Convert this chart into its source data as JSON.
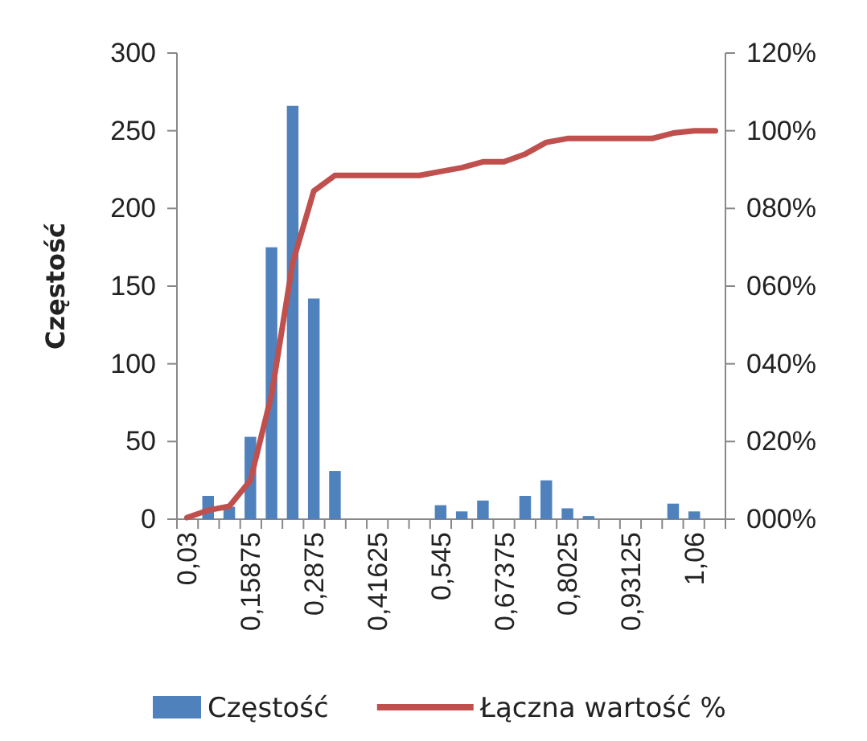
{
  "chart_data": {
    "type": "bar",
    "ylabel": "Częstość",
    "categories": [
      "0,03",
      null,
      null,
      "0,15875",
      null,
      null,
      "0,2875",
      null,
      null,
      "0,41625",
      null,
      null,
      "0,545",
      null,
      null,
      "0,67375",
      null,
      null,
      "0,8025",
      null,
      null,
      "0,93125",
      null,
      null,
      "1,06",
      null
    ],
    "series": [
      {
        "name": "Częstość",
        "color": "#4f81bd",
        "values": [
          null,
          15,
          8,
          53,
          175,
          266,
          142,
          31,
          0,
          0,
          0,
          0,
          9,
          5,
          12,
          0,
          15,
          25,
          7,
          2,
          0,
          0,
          0,
          10,
          5,
          0
        ]
      },
      {
        "name": "Łączna wartość %",
        "type": "line",
        "axis": "y2",
        "color": "#c0504d",
        "values": [
          0.4,
          2.3,
          3.3,
          10,
          32,
          66,
          84.5,
          88.5,
          88.5,
          88.5,
          88.5,
          88.5,
          89.5,
          90.5,
          92,
          92,
          94,
          97,
          98,
          98,
          98,
          98,
          98,
          99.4,
          100,
          100
        ]
      }
    ],
    "ylim": [
      0,
      300
    ],
    "yticks": [
      0,
      50,
      100,
      150,
      200,
      250,
      300
    ],
    "y2lim": [
      0,
      120
    ],
    "y2ticks": [
      {
        "value": 0,
        "label": "000%"
      },
      {
        "value": 20,
        "label": "020%"
      },
      {
        "value": 40,
        "label": "040%"
      },
      {
        "value": 60,
        "label": "060%"
      },
      {
        "value": 80,
        "label": "080%"
      },
      {
        "value": 100,
        "label": "100%"
      },
      {
        "value": 120,
        "label": "120%"
      }
    ],
    "legend": "bottom",
    "grid": false
  }
}
